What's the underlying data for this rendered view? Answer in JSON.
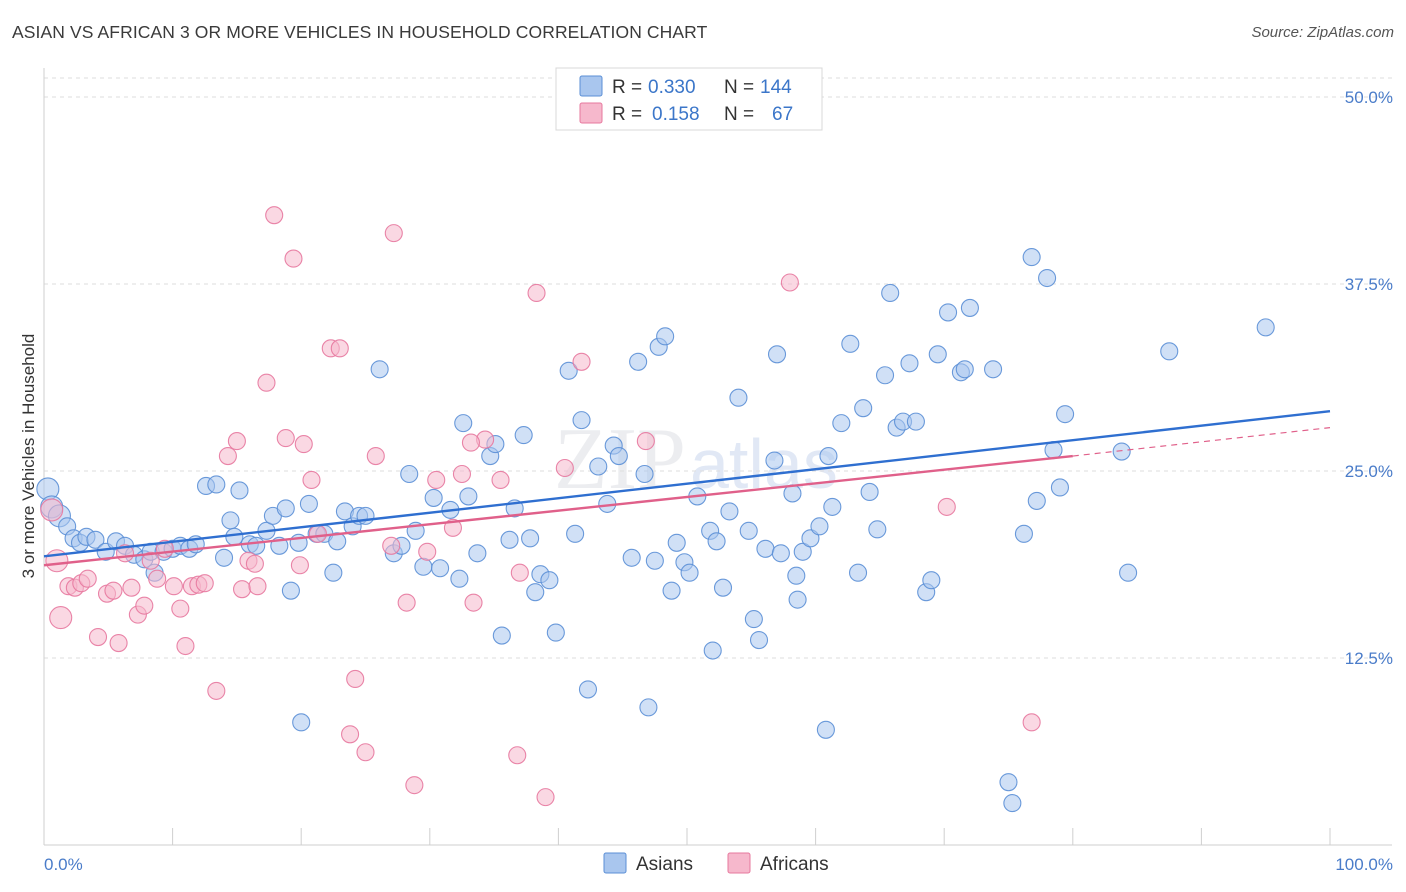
{
  "title": "ASIAN VS AFRICAN 3 OR MORE VEHICLES IN HOUSEHOLD CORRELATION CHART",
  "source": "Source: ZipAtlas.com",
  "watermark": {
    "zip": "ZIP",
    "atlas": "atlas"
  },
  "legend": {
    "r_label": "R =",
    "n_label": "N =",
    "rows": [
      {
        "r": "0.330",
        "n": "144",
        "color": "#a9c6ee"
      },
      {
        "r": "0.158",
        "n": "67",
        "color": "#f6b8cc"
      }
    ]
  },
  "bottom_legend": [
    {
      "label": "Asians",
      "color": "#a9c6ee"
    },
    {
      "label": "Africans",
      "color": "#f6b8cc"
    }
  ],
  "chart_data": {
    "type": "scatter",
    "title": "ASIAN VS AFRICAN 3 OR MORE VEHICLES IN HOUSEHOLD CORRELATION CHART",
    "xlabel": "",
    "ylabel": "3 or more Vehicles in Household",
    "xlim": [
      0,
      100
    ],
    "ylim": [
      0,
      52
    ],
    "x_tick_labels": [
      "0.0%",
      "100.0%"
    ],
    "y_ticks": [
      12.5,
      25.0,
      37.5,
      50.0
    ],
    "y_tick_labels": [
      "12.5%",
      "25.0%",
      "37.5%",
      "50.0%"
    ],
    "grid": "horizontal dashed",
    "legend_position": "top-center",
    "series": [
      {
        "name": "Asians",
        "color": "#5b8fd6",
        "fill": "#a9c6ee",
        "trend": {
          "x": [
            0,
            100
          ],
          "y": [
            19.3,
            29.0
          ],
          "color": "#2f6fd0"
        },
        "points": [
          [
            0.3,
            23.8
          ],
          [
            0.6,
            22.6
          ],
          [
            1.2,
            22.0
          ],
          [
            1.8,
            21.3
          ],
          [
            2.3,
            20.5
          ],
          [
            2.8,
            20.2
          ],
          [
            3.3,
            20.6
          ],
          [
            4.0,
            20.4
          ],
          [
            4.8,
            19.6
          ],
          [
            5.6,
            20.3
          ],
          [
            6.3,
            20.0
          ],
          [
            7.0,
            19.4
          ],
          [
            7.8,
            19.1
          ],
          [
            8.3,
            19.6
          ],
          [
            8.6,
            18.2
          ],
          [
            9.3,
            19.6
          ],
          [
            10.0,
            19.8
          ],
          [
            10.6,
            20.0
          ],
          [
            11.3,
            19.8
          ],
          [
            11.8,
            20.1
          ],
          [
            12.6,
            24.0
          ],
          [
            13.4,
            24.1
          ],
          [
            14.0,
            19.2
          ],
          [
            14.5,
            21.7
          ],
          [
            14.8,
            20.6
          ],
          [
            15.2,
            23.7
          ],
          [
            16.0,
            20.1
          ],
          [
            16.5,
            20.0
          ],
          [
            17.3,
            21.0
          ],
          [
            17.8,
            22.0
          ],
          [
            18.3,
            20.0
          ],
          [
            18.8,
            22.5
          ],
          [
            19.2,
            17.0
          ],
          [
            19.8,
            20.2
          ],
          [
            20.6,
            22.8
          ],
          [
            21.2,
            20.8
          ],
          [
            21.8,
            20.8
          ],
          [
            22.5,
            18.2
          ],
          [
            22.8,
            20.3
          ],
          [
            23.4,
            22.3
          ],
          [
            24.0,
            21.3
          ],
          [
            24.5,
            22.0
          ],
          [
            25.0,
            22.0
          ],
          [
            26.1,
            31.8
          ],
          [
            27.2,
            19.5
          ],
          [
            27.8,
            20.0
          ],
          [
            28.4,
            24.8
          ],
          [
            28.9,
            21.0
          ],
          [
            29.5,
            18.6
          ],
          [
            30.3,
            23.2
          ],
          [
            30.8,
            18.5
          ],
          [
            31.6,
            22.4
          ],
          [
            32.3,
            17.8
          ],
          [
            32.6,
            28.2
          ],
          [
            33.0,
            23.3
          ],
          [
            33.7,
            19.5
          ],
          [
            34.7,
            26.0
          ],
          [
            35.1,
            26.8
          ],
          [
            35.6,
            14.0
          ],
          [
            36.2,
            20.4
          ],
          [
            36.6,
            22.5
          ],
          [
            37.3,
            27.4
          ],
          [
            37.8,
            20.5
          ],
          [
            38.2,
            16.9
          ],
          [
            38.6,
            18.1
          ],
          [
            39.3,
            17.7
          ],
          [
            39.8,
            14.2
          ],
          [
            40.8,
            31.7
          ],
          [
            41.3,
            20.8
          ],
          [
            41.8,
            28.4
          ],
          [
            42.3,
            10.4
          ],
          [
            43.1,
            25.3
          ],
          [
            43.8,
            22.8
          ],
          [
            44.3,
            26.7
          ],
          [
            44.7,
            26.0
          ],
          [
            45.7,
            19.2
          ],
          [
            46.2,
            32.3
          ],
          [
            46.7,
            24.8
          ],
          [
            47.0,
            9.2
          ],
          [
            47.5,
            19.0
          ],
          [
            47.8,
            33.3
          ],
          [
            48.3,
            34.0
          ],
          [
            48.8,
            17.0
          ],
          [
            49.2,
            20.2
          ],
          [
            49.8,
            18.9
          ],
          [
            50.2,
            18.2
          ],
          [
            50.8,
            23.3
          ],
          [
            51.8,
            21.0
          ],
          [
            52.3,
            20.3
          ],
          [
            52.8,
            17.2
          ],
          [
            53.3,
            22.3
          ],
          [
            54.0,
            29.9
          ],
          [
            54.8,
            21.0
          ],
          [
            55.2,
            15.1
          ],
          [
            55.6,
            13.7
          ],
          [
            56.1,
            19.8
          ],
          [
            56.8,
            25.7
          ],
          [
            57.0,
            32.8
          ],
          [
            57.3,
            19.5
          ],
          [
            58.2,
            23.5
          ],
          [
            58.6,
            16.4
          ],
          [
            59.0,
            19.6
          ],
          [
            59.6,
            20.5
          ],
          [
            60.3,
            21.3
          ],
          [
            60.8,
            7.7
          ],
          [
            61.3,
            22.6
          ],
          [
            62.0,
            28.2
          ],
          [
            62.7,
            33.5
          ],
          [
            63.3,
            18.2
          ],
          [
            63.7,
            29.2
          ],
          [
            64.2,
            23.6
          ],
          [
            64.8,
            21.1
          ],
          [
            65.4,
            31.4
          ],
          [
            65.8,
            36.9
          ],
          [
            66.3,
            27.9
          ],
          [
            66.8,
            28.3
          ],
          [
            67.3,
            32.2
          ],
          [
            67.8,
            28.3
          ],
          [
            68.6,
            16.9
          ],
          [
            69.0,
            17.7
          ],
          [
            69.5,
            32.8
          ],
          [
            70.3,
            35.6
          ],
          [
            71.3,
            31.6
          ],
          [
            71.6,
            31.8
          ],
          [
            72.0,
            35.9
          ],
          [
            73.8,
            31.8
          ],
          [
            75.0,
            4.2
          ],
          [
            75.3,
            2.8
          ],
          [
            76.2,
            20.8
          ],
          [
            76.8,
            39.3
          ],
          [
            78.0,
            37.9
          ],
          [
            78.5,
            26.4
          ],
          [
            79.0,
            23.9
          ],
          [
            79.4,
            28.8
          ],
          [
            83.8,
            26.3
          ],
          [
            84.3,
            18.2
          ],
          [
            87.5,
            33.0
          ],
          [
            95.0,
            34.6
          ],
          [
            77.2,
            23.0
          ],
          [
            20.0,
            8.2
          ],
          [
            58.5,
            18.0
          ],
          [
            61.0,
            26.0
          ],
          [
            52.0,
            13.0
          ]
        ]
      },
      {
        "name": "Africans",
        "color": "#e7789e",
        "fill": "#f6b8cc",
        "trend": {
          "x": [
            0,
            80
          ],
          "y": [
            18.7,
            26.0
          ],
          "color": "#e0608a"
        },
        "trend_extension": {
          "x": [
            80,
            100
          ],
          "y": [
            26.0,
            27.9
          ]
        },
        "points": [
          [
            0.6,
            22.4
          ],
          [
            1.0,
            19.0
          ],
          [
            1.3,
            15.2
          ],
          [
            1.9,
            17.3
          ],
          [
            2.4,
            17.2
          ],
          [
            2.9,
            17.5
          ],
          [
            3.4,
            17.8
          ],
          [
            4.2,
            13.9
          ],
          [
            4.9,
            16.8
          ],
          [
            5.4,
            17.0
          ],
          [
            5.8,
            13.5
          ],
          [
            6.3,
            19.5
          ],
          [
            6.8,
            17.2
          ],
          [
            7.3,
            15.4
          ],
          [
            7.8,
            16.0
          ],
          [
            8.3,
            19.0
          ],
          [
            8.8,
            17.8
          ],
          [
            9.4,
            19.8
          ],
          [
            10.1,
            17.3
          ],
          [
            10.6,
            15.8
          ],
          [
            11.0,
            13.3
          ],
          [
            11.5,
            17.3
          ],
          [
            12.0,
            17.4
          ],
          [
            12.5,
            17.5
          ],
          [
            13.4,
            10.3
          ],
          [
            14.3,
            26.0
          ],
          [
            15.0,
            27.0
          ],
          [
            15.4,
            17.1
          ],
          [
            15.9,
            19.0
          ],
          [
            16.4,
            18.8
          ],
          [
            16.6,
            17.3
          ],
          [
            17.3,
            30.9
          ],
          [
            17.9,
            42.1
          ],
          [
            18.8,
            27.2
          ],
          [
            19.4,
            39.2
          ],
          [
            19.9,
            18.7
          ],
          [
            20.8,
            24.4
          ],
          [
            21.3,
            20.8
          ],
          [
            22.3,
            33.2
          ],
          [
            23.0,
            33.2
          ],
          [
            23.8,
            7.4
          ],
          [
            24.2,
            11.1
          ],
          [
            25.0,
            6.2
          ],
          [
            25.8,
            26.0
          ],
          [
            27.2,
            40.9
          ],
          [
            28.2,
            16.2
          ],
          [
            28.8,
            4.0
          ],
          [
            29.8,
            19.6
          ],
          [
            30.5,
            24.4
          ],
          [
            31.8,
            21.2
          ],
          [
            32.5,
            24.8
          ],
          [
            33.4,
            16.2
          ],
          [
            34.3,
            27.1
          ],
          [
            35.5,
            24.4
          ],
          [
            36.8,
            6.0
          ],
          [
            37.0,
            18.2
          ],
          [
            38.3,
            36.9
          ],
          [
            39.0,
            3.2
          ],
          [
            40.5,
            25.2
          ],
          [
            41.8,
            32.3
          ],
          [
            46.8,
            27.0
          ],
          [
            58.0,
            37.6
          ],
          [
            70.2,
            22.6
          ],
          [
            76.8,
            8.2
          ],
          [
            20.2,
            26.8
          ],
          [
            27.0,
            20.0
          ],
          [
            33.2,
            26.9
          ]
        ]
      }
    ]
  }
}
